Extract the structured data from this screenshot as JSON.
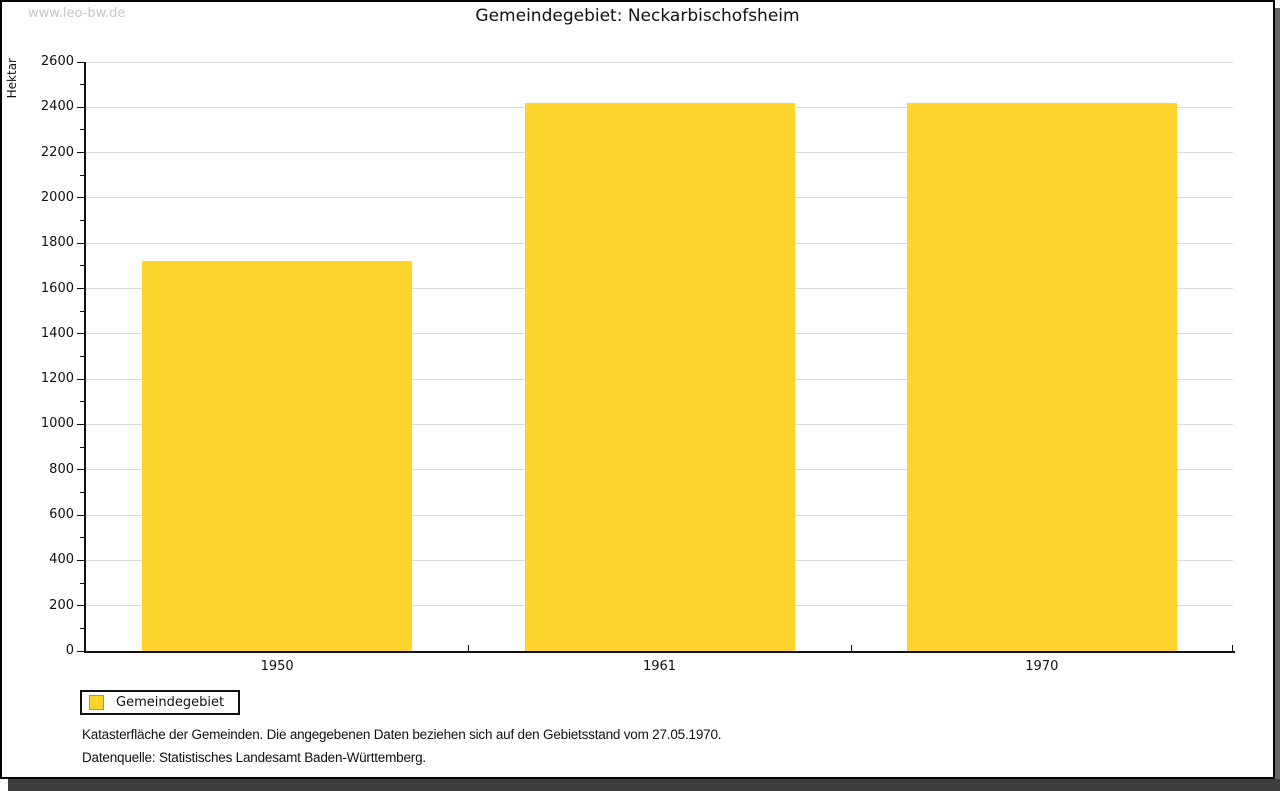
{
  "watermark": "www.leo-bw.de",
  "chart_data": {
    "type": "bar",
    "title": "Gemeindegebiet: Neckarbischofsheim",
    "ylabel": "Hektar",
    "xlabel": "",
    "categories": [
      "1950",
      "1961",
      "1970"
    ],
    "series": [
      {
        "name": "Gemeindegebiet",
        "values": [
          1722,
          2421,
          2418
        ]
      }
    ],
    "ylim": [
      0,
      2600
    ],
    "ytick_step": 200,
    "minor_tick_step": 100,
    "grid": true,
    "legend_position": "bottom-left",
    "bar_color": "#FCD42B"
  },
  "legend": {
    "items": [
      {
        "label": "Gemeindegebiet",
        "color": "#FCD42B"
      }
    ]
  },
  "footnotes": [
    "Katasterfläche der Gemeinden. Die angegebenen Daten beziehen sich auf den Gebietsstand vom 27.05.1970.",
    "Datenquelle: Statistisches Landesamt Baden-Württemberg."
  ],
  "colors": {
    "bar": "#FCD42B",
    "swatch_border": "#C49310",
    "grid": "#DCDCDC",
    "axis": "#111111",
    "watermark": "#C6C6C6",
    "shadow_right": "#666666",
    "shadow_bottom": "#3D3D3D"
  }
}
